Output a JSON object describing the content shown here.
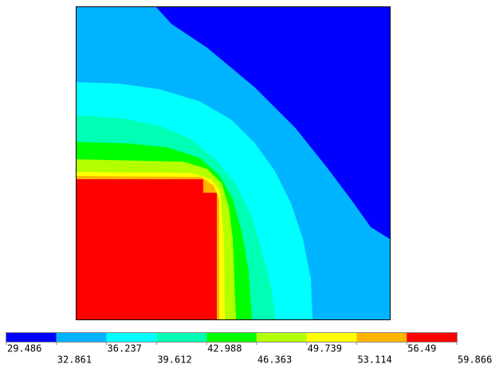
{
  "chart_data": {
    "type": "contour",
    "levels": [
      29.486,
      32.861,
      36.237,
      39.612,
      42.988,
      46.363,
      49.739,
      53.114,
      56.49,
      59.866
    ],
    "colors": [
      "#0000ff",
      "#00b4ff",
      "#00ffff",
      "#00ffb4",
      "#00ff00",
      "#b4ff00",
      "#ffff00",
      "#ffb400",
      "#ff0000"
    ]
  }
}
